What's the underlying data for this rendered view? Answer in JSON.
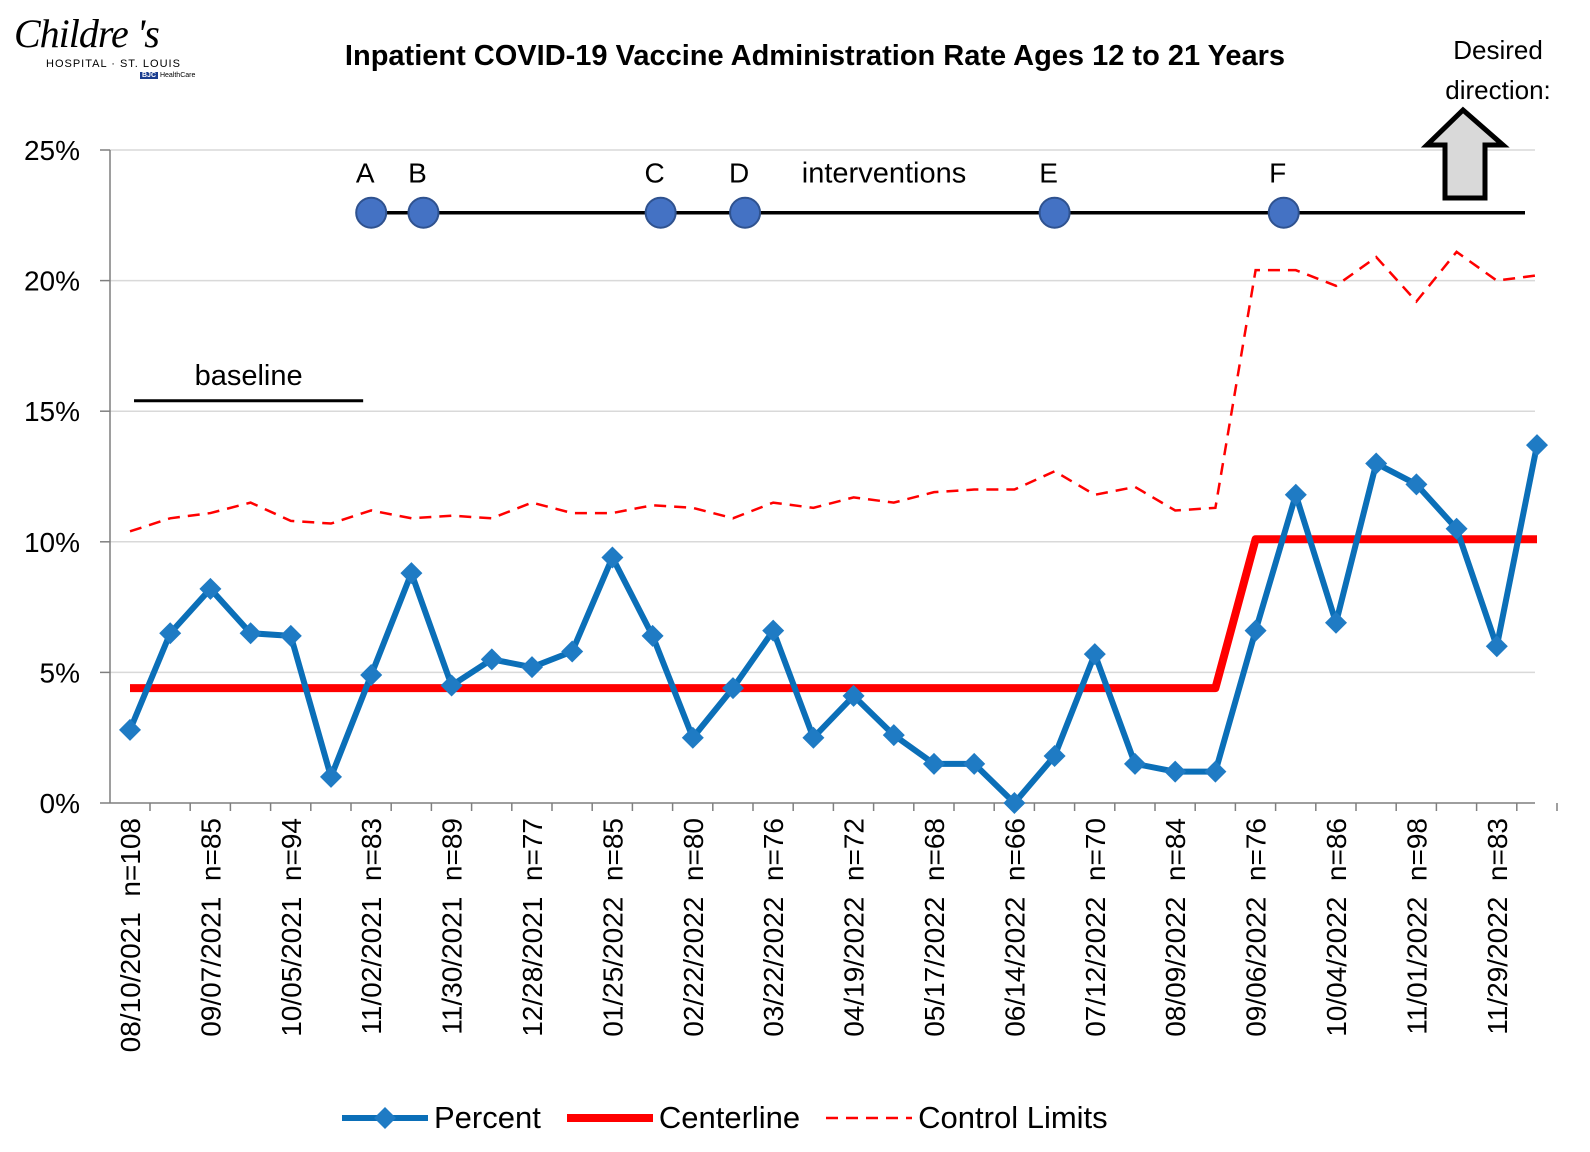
{
  "logo": {
    "name": "Childre   's",
    "subtitle": "HOSPITAL · ST. LOUIS",
    "partner_tag": "BJC",
    "partner_text": "HealthCare"
  },
  "header": {
    "desired_direction": "Desired direction:"
  },
  "colors": {
    "percent": "#0b6fb8",
    "marker": "#1f7bc4",
    "centerline": "#ff0000",
    "control": "#ff0000",
    "grid": "#d9d9d9",
    "intervention_dot": "#4472c4",
    "arrow_fill": "#d9d9d9"
  },
  "chart_data": {
    "type": "line",
    "title": "Inpatient COVID-19 Vaccine Administration Rate Ages 12 to 21 Years",
    "ylim": [
      0,
      25
    ],
    "yticks": [
      "0%",
      "5%",
      "10%",
      "15%",
      "20%",
      "25%"
    ],
    "grid": true,
    "legend_position": "bottom",
    "x_tick_labels": [
      "08/10/2021  n=108",
      "09/07/2021  n=85",
      "10/05/2021  n=94",
      "11/02/2021  n=83",
      "11/30/2021  n=89",
      "12/28/2021  n=77",
      "01/25/2022  n=85",
      "02/22/2022  n=80",
      "03/22/2022  n=76",
      "04/19/2022  n=72",
      "05/17/2022  n=68",
      "06/14/2022  n=66",
      "07/12/2022  n=70",
      "08/09/2022  n=84",
      "09/06/2022  n=76",
      "10/04/2022  n=86",
      "11/01/2022  n=98",
      "11/29/2022  n=83"
    ],
    "series": [
      {
        "name": "Percent",
        "values": [
          2.8,
          6.5,
          8.2,
          6.5,
          6.4,
          1.0,
          4.9,
          8.8,
          4.5,
          5.5,
          5.2,
          5.8,
          9.4,
          6.4,
          2.5,
          4.4,
          6.6,
          2.5,
          4.1,
          2.6,
          1.5,
          1.5,
          0.0,
          1.8,
          5.7,
          1.5,
          1.2,
          1.2,
          6.6,
          11.8,
          6.9,
          13.0,
          12.2,
          10.5,
          6.0,
          13.7
        ]
      },
      {
        "name": "Centerline",
        "values": [
          4.4,
          4.4,
          4.4,
          4.4,
          4.4,
          4.4,
          4.4,
          4.4,
          4.4,
          4.4,
          4.4,
          4.4,
          4.4,
          4.4,
          4.4,
          4.4,
          4.4,
          4.4,
          4.4,
          4.4,
          4.4,
          4.4,
          4.4,
          4.4,
          4.4,
          4.4,
          4.4,
          4.4,
          10.1,
          10.1,
          10.1,
          10.1,
          10.1,
          10.1,
          10.1,
          10.1
        ]
      },
      {
        "name": "Control Limits",
        "values": [
          10.4,
          10.9,
          11.1,
          11.5,
          10.8,
          10.7,
          11.2,
          10.9,
          11.0,
          10.9,
          11.5,
          11.1,
          11.1,
          11.4,
          11.3,
          10.9,
          11.5,
          11.3,
          11.7,
          11.5,
          11.9,
          12.0,
          12.0,
          12.7,
          11.8,
          12.1,
          11.2,
          11.3,
          20.4,
          20.4,
          19.8,
          20.9,
          19.2,
          21.1,
          20.0,
          20.2
        ]
      }
    ],
    "annotations": {
      "baseline_label": "baseline",
      "interventions_label": "interventions",
      "interventions": [
        {
          "label": "A",
          "x": 6
        },
        {
          "label": "B",
          "x": 7.3
        },
        {
          "label": "C",
          "x": 13.2
        },
        {
          "label": "D",
          "x": 15.3
        },
        {
          "label": "E",
          "x": 23
        },
        {
          "label": "F",
          "x": 28.7
        }
      ],
      "intervention_level": 22.6,
      "baseline_x": [
        0.1,
        5.8
      ],
      "baseline_level": 15.4
    }
  }
}
